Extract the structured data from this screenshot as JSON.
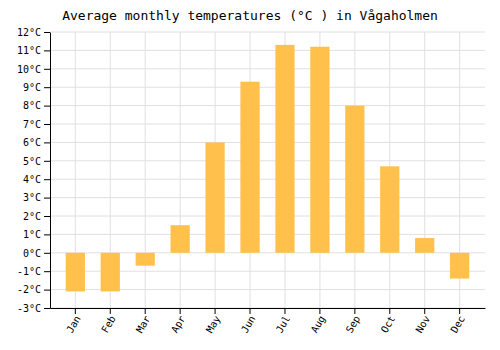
{
  "chart_data": {
    "type": "bar",
    "title": "Average monthly temperatures (°C ) in Vågaholmen",
    "categories": [
      "Jan",
      "Feb",
      "Mar",
      "Apr",
      "May",
      "Jun",
      "Jul",
      "Aug",
      "Sep",
      "Oct",
      "Nov",
      "Dec"
    ],
    "values": [
      -2.1,
      -2.1,
      -0.7,
      1.5,
      6.0,
      9.3,
      11.3,
      11.2,
      8.0,
      4.7,
      0.8,
      -1.4
    ],
    "color": "#FFC04C",
    "ylim": [
      -3,
      12
    ],
    "yticks": [
      {
        "value": -3,
        "label": "-3°C"
      },
      {
        "value": -2,
        "label": "-2°C"
      },
      {
        "value": -1,
        "label": "-1°C"
      },
      {
        "value": 0,
        "label": "0°C"
      },
      {
        "value": 1,
        "label": "1°C"
      },
      {
        "value": 2,
        "label": "2°C"
      },
      {
        "value": 3,
        "label": "3°C"
      },
      {
        "value": 4,
        "label": "4°C"
      },
      {
        "value": 5,
        "label": "5°C"
      },
      {
        "value": 6,
        "label": "6°C"
      },
      {
        "value": 7,
        "label": "7°C"
      },
      {
        "value": 8,
        "label": "8°C"
      },
      {
        "value": 9,
        "label": "9°C"
      },
      {
        "value": 10,
        "label": "10°C"
      },
      {
        "value": 11,
        "label": "11°C"
      },
      {
        "value": 12,
        "label": "12°C"
      }
    ],
    "grid": true
  }
}
